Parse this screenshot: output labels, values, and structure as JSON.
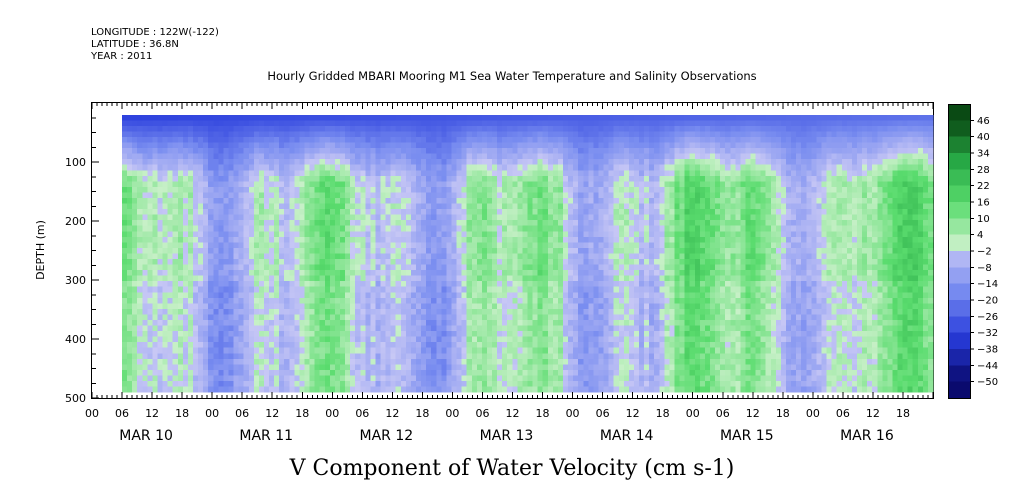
{
  "header": {
    "longitude": "LONGITUDE : 122W(-122)",
    "latitude": "LATITUDE : 36.8N",
    "year": "YEAR : 2011"
  },
  "chart_data": {
    "type": "heatmap",
    "title": "Hourly Gridded MBARI Mooring M1 Sea Water Temperature and Salinity Observations",
    "bottom_title": "V Component of Water Velocity (cm s-1)",
    "ylabel": "DEPTH (m)",
    "ylim": [
      500,
      0
    ],
    "y_inverted": true,
    "y_ticks": [
      100,
      200,
      300,
      400,
      500
    ],
    "x_hour_ticks": [
      "00",
      "06",
      "12",
      "18",
      "00",
      "06",
      "12",
      "18",
      "00",
      "06",
      "12",
      "18",
      "00",
      "06",
      "12",
      "18",
      "00",
      "06",
      "12",
      "18",
      "00",
      "06",
      "12",
      "18",
      "00",
      "06",
      "12",
      "18"
    ],
    "x_day_labels": [
      "MAR 10",
      "MAR 11",
      "MAR 12",
      "MAR 13",
      "MAR 14",
      "MAR 15",
      "MAR 16"
    ],
    "x_range_hours": [
      0,
      168
    ],
    "data_x_range_hours": [
      6,
      168
    ],
    "data_depth_range": [
      20,
      490
    ],
    "colorbar": {
      "levels": [
        -50,
        -44,
        -38,
        -32,
        -26,
        -20,
        -14,
        -8,
        -2,
        4,
        10,
        16,
        22,
        28,
        34,
        40,
        46
      ],
      "low_color": "#0a0a6e",
      "mid_color": "#c8f0c8",
      "high_color": "#0a4a14"
    },
    "pattern_summary": "Near-surface (20-100 m) negative velocities (-20 to -44 cm/s, blue); alternating vertical bands of positive (green, up to ~+28) and weak negative (lavender) values below ~100 m."
  }
}
